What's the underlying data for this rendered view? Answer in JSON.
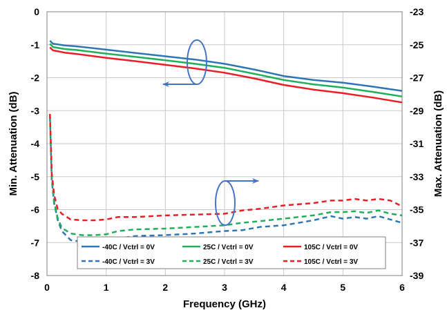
{
  "chart_data": {
    "type": "line",
    "xlabel": "Frequency  (GHz)",
    "ylabel_left": "Min. Attenuation (dB)",
    "ylabel_right": "Max. Attenuation  (dB)",
    "xlim": [
      0,
      6
    ],
    "xticks": [
      "0",
      "1",
      "2",
      "3",
      "4",
      "5",
      "6"
    ],
    "ylim_left": [
      -8,
      0
    ],
    "yticks_left": [
      "0",
      "-1",
      "-2",
      "-3",
      "-4",
      "-5",
      "-6",
      "-7",
      "-8"
    ],
    "ylim_right": [
      -39,
      -23
    ],
    "yticks_right": [
      "-23",
      "-25",
      "-27",
      "-29",
      "-31",
      "-33",
      "-35",
      "-37",
      "-39"
    ],
    "grid": true,
    "legend_position": "bottom-center",
    "series": [
      {
        "name": "-40C /  Vctrl = 0V",
        "axis": "left",
        "color": "#2E75B6",
        "dash": "solid",
        "x": [
          0.05,
          0.1,
          0.3,
          0.5,
          1.0,
          1.5,
          2.0,
          2.5,
          3.0,
          3.5,
          4.0,
          4.5,
          5.0,
          5.5,
          6.0
        ],
        "y": [
          -0.88,
          -0.97,
          -1.02,
          -1.05,
          -1.15,
          -1.25,
          -1.35,
          -1.45,
          -1.58,
          -1.75,
          -1.95,
          -2.07,
          -2.15,
          -2.27,
          -2.4
        ]
      },
      {
        "name": "25C /  Vctrl = 0V",
        "axis": "left",
        "color": "#1DAF5A",
        "dash": "solid",
        "x": [
          0.05,
          0.1,
          0.3,
          0.5,
          1.0,
          1.5,
          2.0,
          2.5,
          3.0,
          3.5,
          4.0,
          4.5,
          5.0,
          5.5,
          6.0
        ],
        "y": [
          -0.97,
          -1.07,
          -1.13,
          -1.16,
          -1.27,
          -1.37,
          -1.47,
          -1.58,
          -1.7,
          -1.88,
          -2.07,
          -2.2,
          -2.3,
          -2.43,
          -2.57
        ]
      },
      {
        "name": "105C /  Vctrl = 0V",
        "axis": "left",
        "color": "#EE1C24",
        "dash": "solid",
        "x": [
          0.05,
          0.1,
          0.3,
          0.5,
          1.0,
          1.5,
          2.0,
          2.5,
          3.0,
          3.5,
          4.0,
          4.5,
          5.0,
          5.5,
          6.0
        ],
        "y": [
          -1.08,
          -1.17,
          -1.24,
          -1.28,
          -1.4,
          -1.5,
          -1.61,
          -1.72,
          -1.85,
          -2.02,
          -2.22,
          -2.36,
          -2.47,
          -2.6,
          -2.75
        ]
      },
      {
        "name": "-40C /  Vctrl = 3V",
        "axis": "right",
        "color": "#2E75B6",
        "dash": "dashed",
        "x": [
          0.05,
          0.08,
          0.12,
          0.18,
          0.25,
          0.4,
          0.6,
          0.8,
          1.0,
          1.2,
          1.5,
          2.0,
          2.5,
          3.0,
          3.3,
          3.6,
          4.0,
          4.5,
          4.8,
          5.0,
          5.2,
          5.4,
          5.6,
          5.8,
          6.0
        ],
        "y": [
          -29.4,
          -33.2,
          -34.6,
          -35.6,
          -36.3,
          -36.85,
          -36.95,
          -36.95,
          -36.9,
          -36.75,
          -36.6,
          -36.55,
          -36.45,
          -36.3,
          -36.25,
          -36.05,
          -35.95,
          -35.65,
          -35.4,
          -35.55,
          -35.45,
          -35.55,
          -35.4,
          -35.6,
          -35.8
        ]
      },
      {
        "name": "25C /  Vctrl = 3V",
        "axis": "right",
        "color": "#1DAF5A",
        "dash": "dashed",
        "x": [
          0.05,
          0.08,
          0.12,
          0.18,
          0.25,
          0.4,
          0.6,
          0.8,
          1.0,
          1.2,
          1.5,
          2.0,
          2.5,
          3.0,
          3.3,
          3.6,
          4.0,
          4.5,
          4.8,
          5.0,
          5.2,
          5.4,
          5.6,
          5.8,
          6.0
        ],
        "y": [
          -29.3,
          -33.0,
          -34.5,
          -35.5,
          -36.1,
          -36.45,
          -36.55,
          -36.55,
          -36.5,
          -36.3,
          -36.2,
          -36.15,
          -36.05,
          -35.95,
          -35.8,
          -35.7,
          -35.55,
          -35.35,
          -35.15,
          -35.15,
          -35.1,
          -35.2,
          -35.05,
          -35.25,
          -35.35
        ]
      },
      {
        "name": "105C /  Vctrl = 3V",
        "axis": "right",
        "color": "#EE1C24",
        "dash": "dashed",
        "x": [
          0.05,
          0.08,
          0.12,
          0.18,
          0.25,
          0.4,
          0.6,
          0.8,
          1.0,
          1.2,
          1.5,
          2.0,
          2.5,
          3.0,
          3.3,
          3.6,
          4.0,
          4.5,
          4.8,
          5.0,
          5.2,
          5.4,
          5.6,
          5.8,
          6.0
        ],
        "y": [
          -29.2,
          -32.8,
          -34.1,
          -34.95,
          -35.25,
          -35.6,
          -35.65,
          -35.65,
          -35.6,
          -35.45,
          -35.45,
          -35.35,
          -35.3,
          -35.25,
          -35.05,
          -34.95,
          -34.75,
          -34.6,
          -34.45,
          -34.45,
          -34.35,
          -34.45,
          -34.35,
          -34.45,
          -34.8
        ]
      }
    ]
  }
}
